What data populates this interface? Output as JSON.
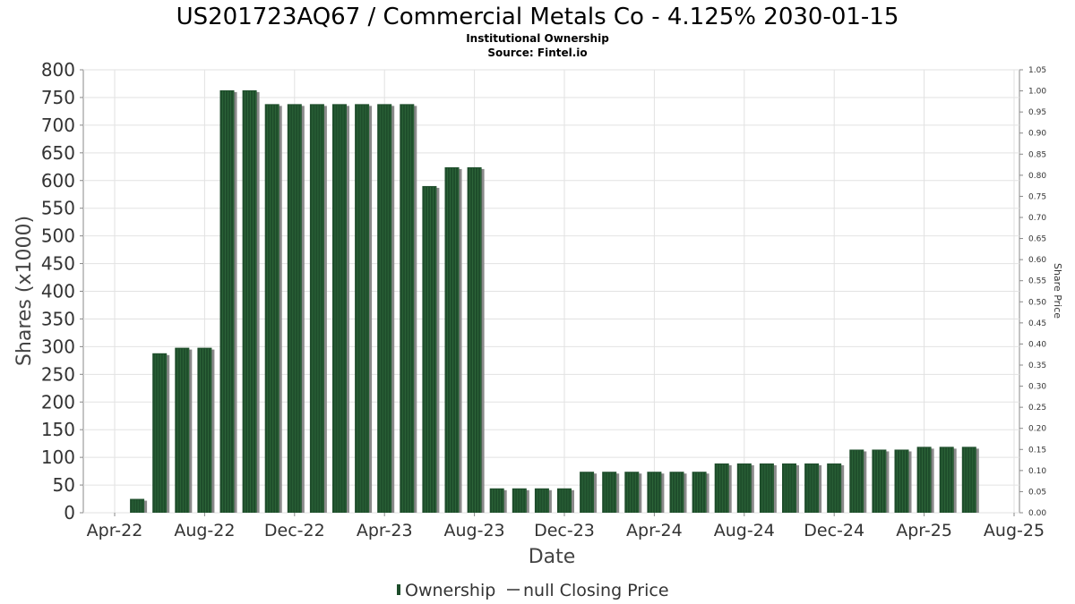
{
  "chart_data": {
    "type": "bar",
    "title": "US201723AQ67 / Commercial Metals Co - 4.125% 2030-01-15",
    "subtitles": [
      "Institutional Ownership",
      "Source: Fintel.io"
    ],
    "xlabel": "Date",
    "ylabel": "Shares (x1000)",
    "y2label": "Share Price",
    "ylim": [
      0,
      800
    ],
    "y2lim": [
      0,
      1.05
    ],
    "y_ticks": [
      0,
      50,
      100,
      150,
      200,
      250,
      300,
      350,
      400,
      450,
      500,
      550,
      600,
      650,
      700,
      750,
      800
    ],
    "y2_ticks": [
      "0.00",
      "0.05",
      "0.10",
      "0.15",
      "0.20",
      "0.25",
      "0.30",
      "0.35",
      "0.40",
      "0.45",
      "0.50",
      "0.55",
      "0.60",
      "0.65",
      "0.70",
      "0.75",
      "0.80",
      "0.85",
      "0.90",
      "0.95",
      "1.00",
      "1.05"
    ],
    "x_tick_labels": [
      "Apr-22",
      "Aug-22",
      "Dec-22",
      "Apr-23",
      "Aug-23",
      "Dec-23",
      "Apr-24",
      "Aug-24",
      "Dec-24",
      "Apr-25",
      "Aug-25"
    ],
    "grid": true,
    "legend_position": "bottom",
    "legend": [
      "Ownership",
      "null Closing Price"
    ],
    "series": [
      {
        "name": "Ownership",
        "color": "#1e4d2b",
        "x": [
          "2022-05",
          "2022-06",
          "2022-07",
          "2022-08",
          "2022-09",
          "2022-10",
          "2022-11",
          "2022-12",
          "2023-01",
          "2023-02",
          "2023-03",
          "2023-04",
          "2023-05",
          "2023-06",
          "2023-07",
          "2023-08",
          "2023-09",
          "2023-10",
          "2023-11",
          "2023-12",
          "2024-01",
          "2024-02",
          "2024-03",
          "2024-04",
          "2024-05",
          "2024-06",
          "2024-07",
          "2024-08",
          "2024-09",
          "2024-10",
          "2024-11",
          "2024-12",
          "2025-01",
          "2025-02",
          "2025-03",
          "2025-04",
          "2025-05",
          "2025-06"
        ],
        "values": [
          25,
          288,
          298,
          298,
          763,
          763,
          738,
          738,
          738,
          738,
          738,
          738,
          738,
          590,
          624,
          624,
          44,
          44,
          44,
          44,
          74,
          74,
          74,
          74,
          74,
          74,
          89,
          89,
          89,
          89,
          89,
          89,
          114,
          114,
          114,
          119,
          119,
          119
        ]
      }
    ]
  }
}
